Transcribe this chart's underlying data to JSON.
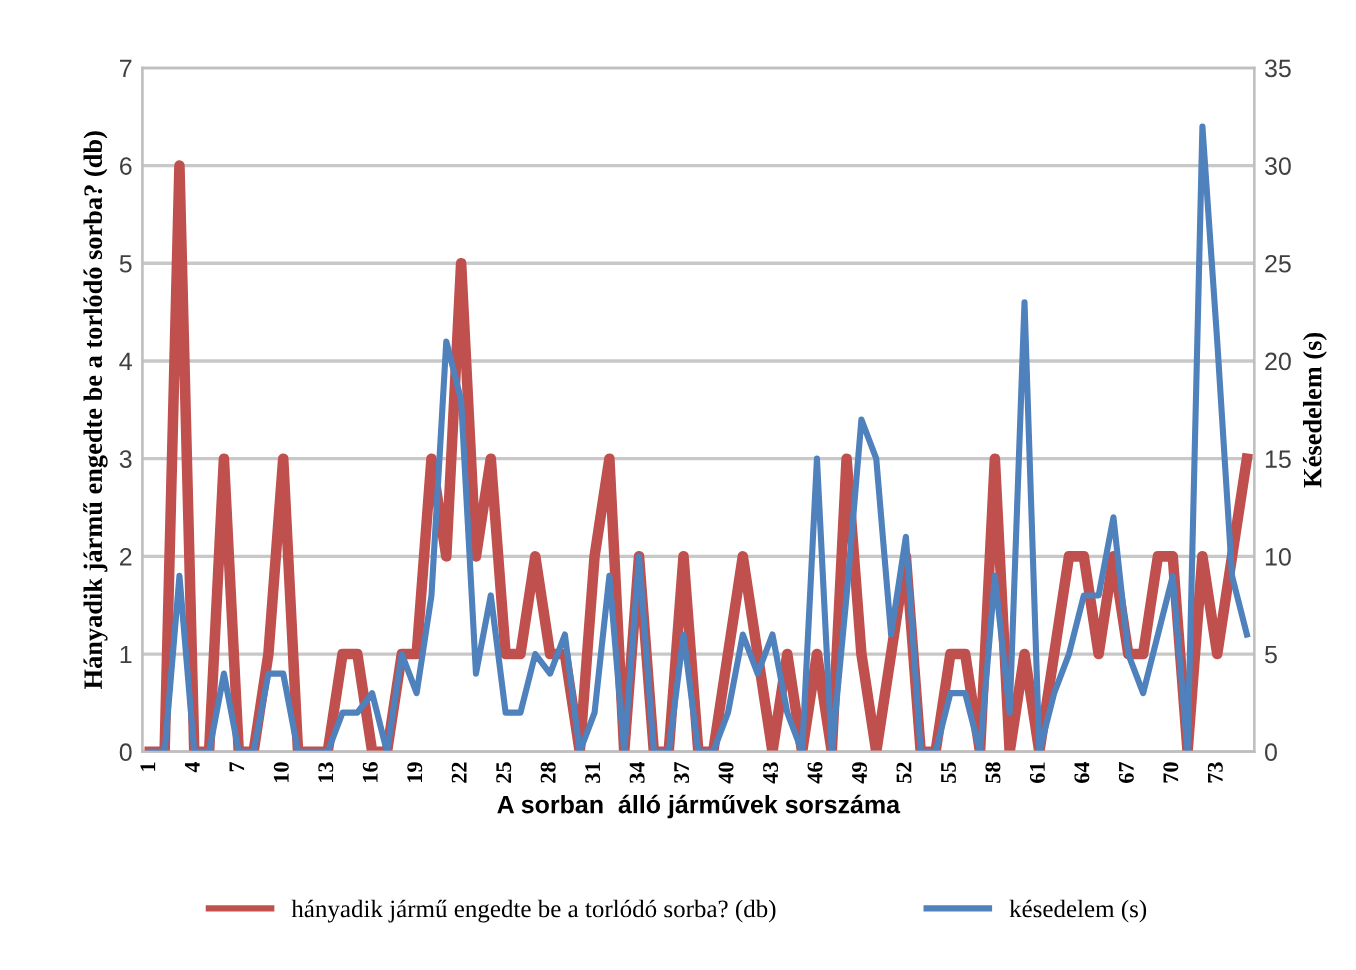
{
  "chart_data": {
    "type": "line",
    "categories": [
      "1",
      null,
      null,
      "4",
      null,
      null,
      "7",
      null,
      null,
      "10",
      null,
      null,
      "13",
      null,
      null,
      "16",
      null,
      null,
      "19",
      null,
      null,
      "22",
      null,
      null,
      "25",
      null,
      null,
      "28",
      null,
      null,
      "31",
      null,
      null,
      "34",
      null,
      null,
      "37",
      null,
      null,
      "40",
      null,
      null,
      "43",
      null,
      null,
      "46",
      null,
      null,
      "49",
      null,
      null,
      "52",
      null,
      null,
      "55",
      null,
      null,
      "58",
      null,
      null,
      "61",
      null,
      null,
      "64",
      null,
      null,
      "67",
      null,
      null,
      "70",
      null,
      null,
      "73",
      null,
      null
    ],
    "series": [
      {
        "name": "hányadik jármű engedte be a torlódó sorba? (db)",
        "color": "#c0504d",
        "values": [
          0,
          0,
          6,
          0,
          0,
          3,
          0,
          0,
          1,
          3,
          0,
          0,
          0,
          1,
          1,
          0,
          0,
          1,
          1,
          3,
          2,
          5,
          2,
          3,
          1,
          1,
          2,
          1,
          1,
          0,
          2,
          3,
          0,
          2,
          0,
          0,
          2,
          0,
          0,
          1,
          2,
          1,
          0,
          1,
          0,
          1,
          0,
          3,
          1,
          0,
          1,
          2,
          0,
          0,
          1,
          1,
          0,
          3,
          0,
          1,
          0,
          1,
          2,
          2,
          1,
          2,
          1,
          1,
          2,
          2,
          0,
          2,
          1,
          2,
          3
        ]
      },
      {
        "name": "késedelem (s)",
        "color": "#4f81bd",
        "axis": "y2",
        "values": [
          0,
          0,
          9,
          0,
          0,
          4,
          0,
          0,
          4,
          4,
          0,
          0,
          0,
          2,
          2,
          3,
          0,
          5,
          3,
          8,
          21,
          18,
          4,
          8,
          2,
          2,
          5,
          4,
          6,
          0,
          2,
          9,
          0,
          10,
          0,
          0,
          6,
          0,
          0,
          2,
          6,
          4,
          6,
          2,
          0,
          15,
          0,
          8,
          17,
          15,
          6,
          11,
          0,
          0,
          3,
          3,
          0,
          9,
          2,
          23,
          0,
          3,
          5,
          8,
          8,
          12,
          5,
          3,
          6,
          9,
          0,
          32,
          21,
          9,
          6
        ]
      }
    ],
    "xlabel": "A sorban  álló járművek sorszáma",
    "ylabel": "Hányadik jármű engedte be a torlódó sorba? (db)",
    "y2label": "Késedelem (s)",
    "ylim": [
      0,
      7
    ],
    "yticks": [
      0,
      1,
      2,
      3,
      4,
      5,
      6,
      7
    ],
    "y2lim": [
      0,
      35
    ],
    "y2ticks": [
      0,
      5,
      10,
      15,
      20,
      25,
      30,
      35
    ],
    "grid": "y",
    "legend": "bottom",
    "marker": "none",
    "line_style": "solid"
  }
}
